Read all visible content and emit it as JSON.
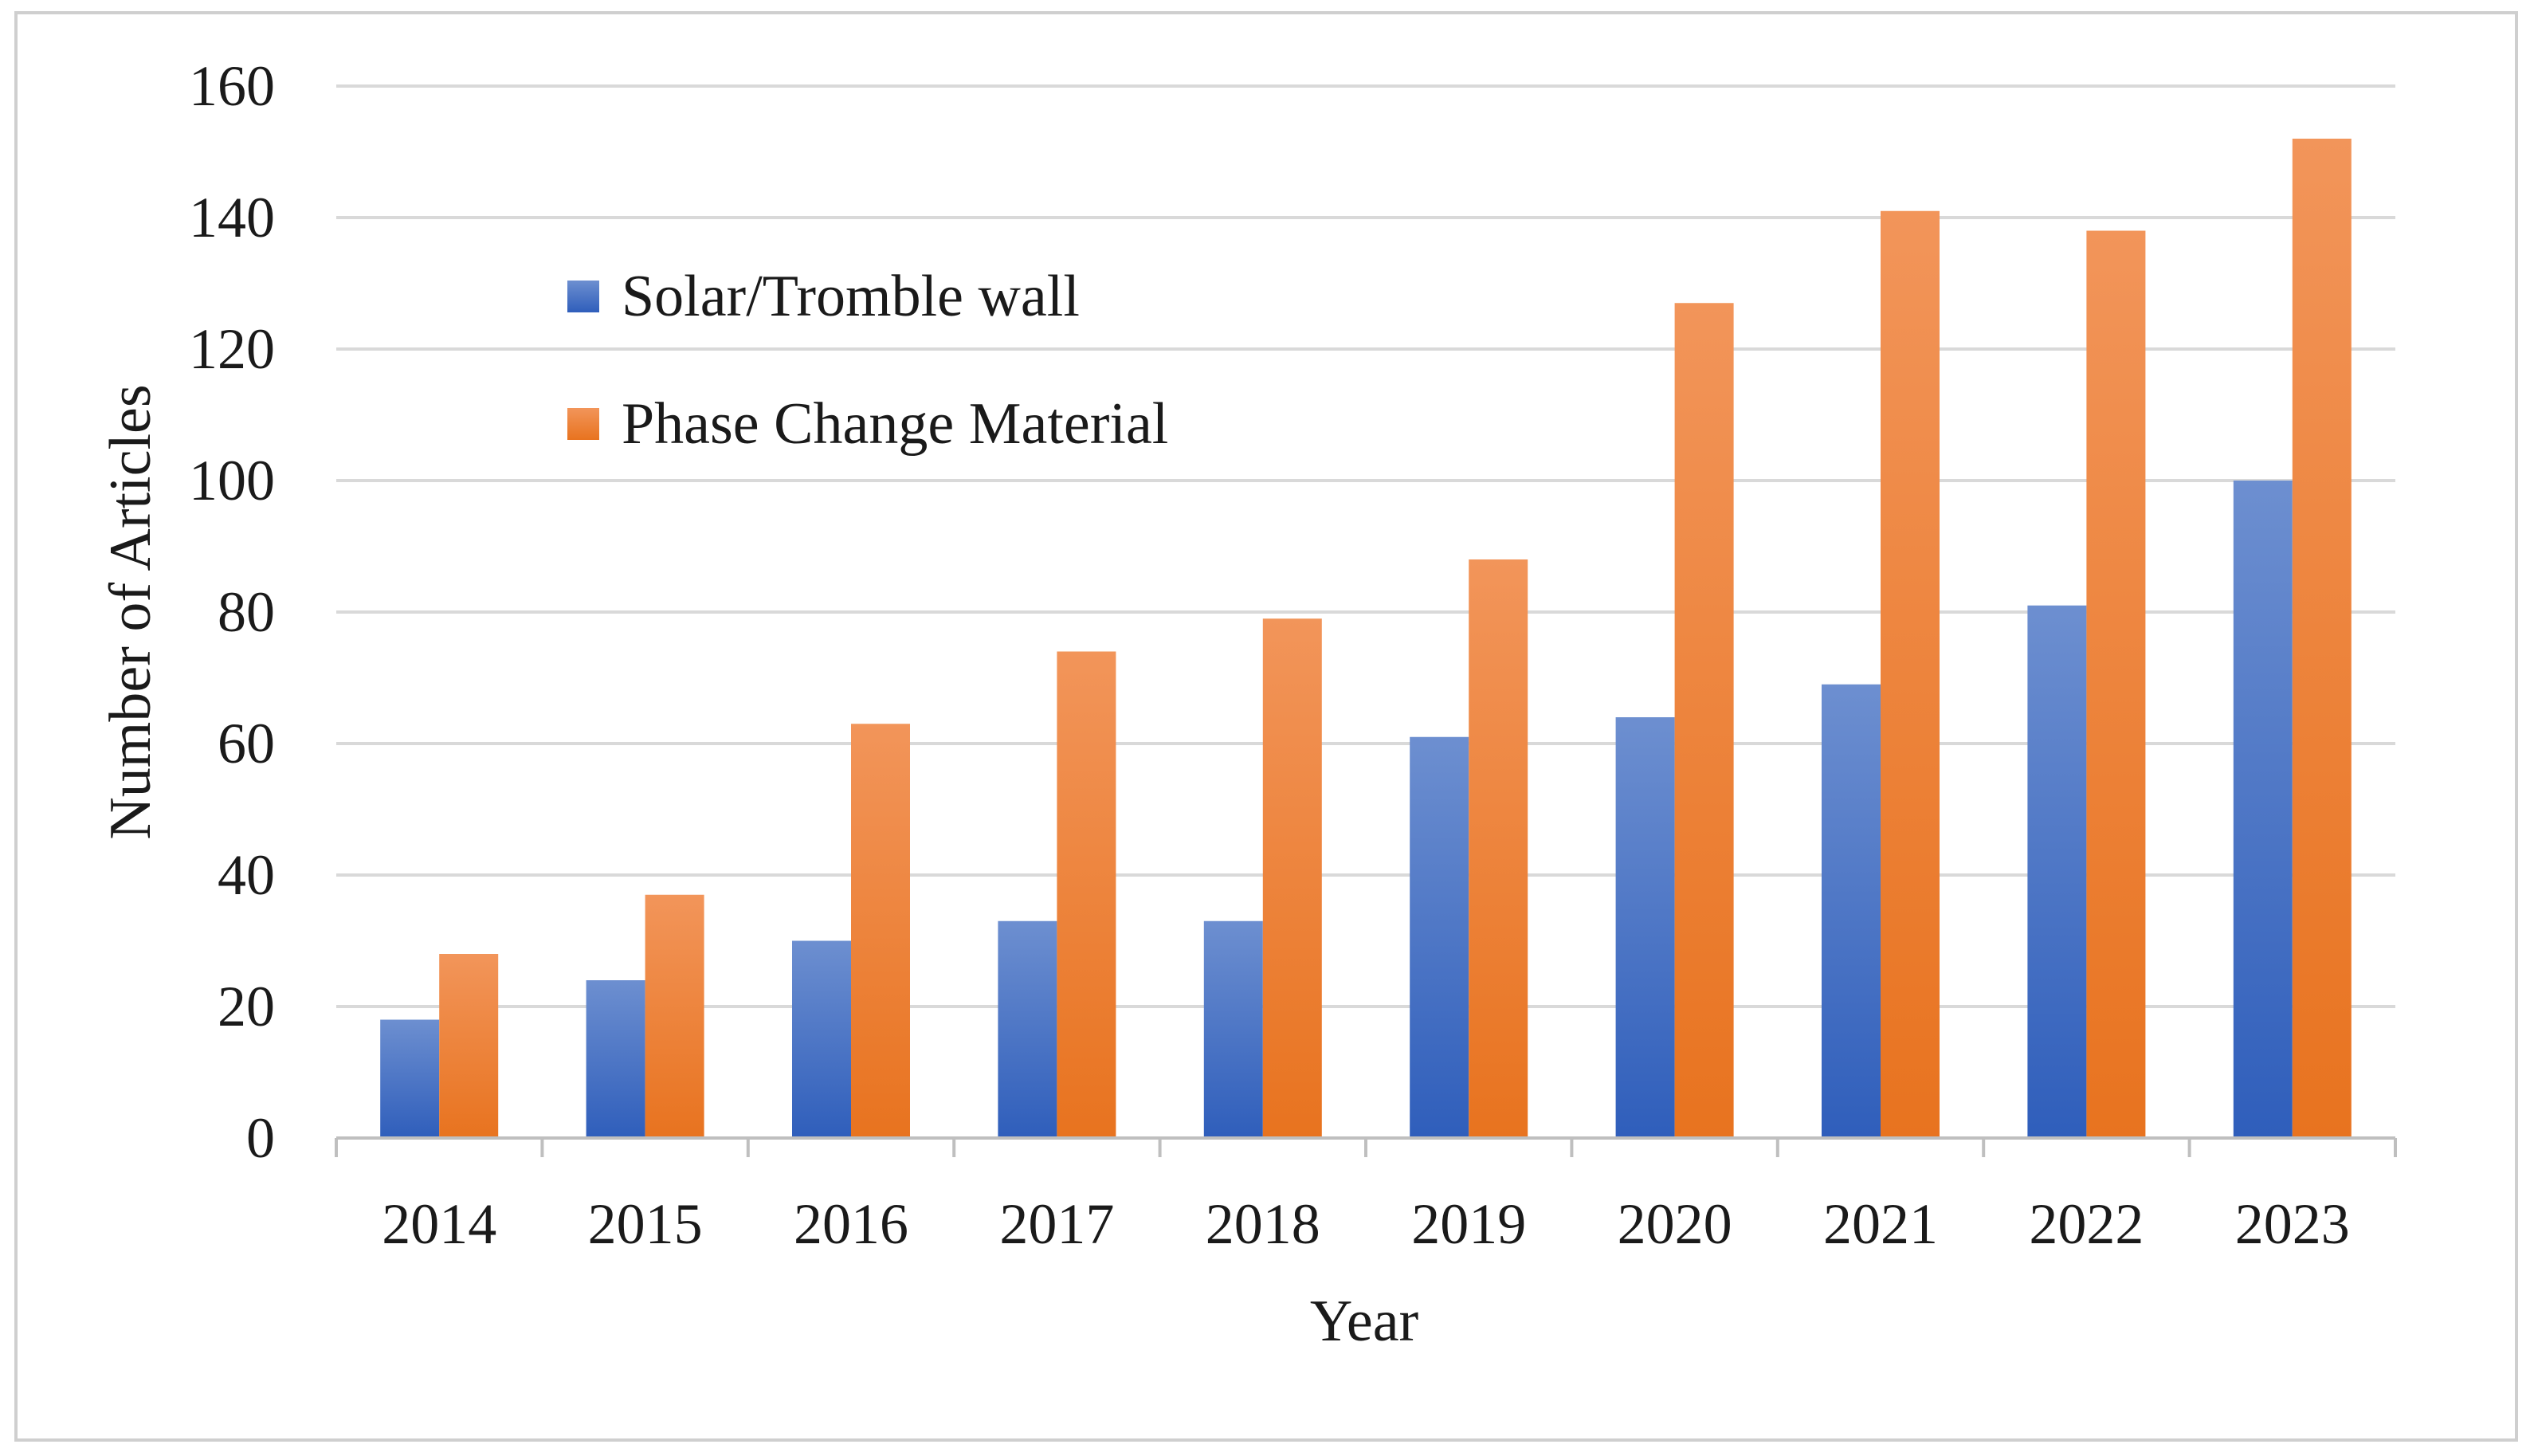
{
  "chart_data": {
    "type": "bar",
    "title": "",
    "xlabel": "Year",
    "ylabel": "Number of Articles",
    "categories": [
      "2014",
      "2015",
      "2016",
      "2017",
      "2018",
      "2019",
      "2020",
      "2021",
      "2022",
      "2023"
    ],
    "series": [
      {
        "name": "Solar/Tromble wall",
        "color": "#4472C4",
        "values": [
          18,
          24,
          30,
          33,
          33,
          61,
          64,
          69,
          81,
          100
        ]
      },
      {
        "name": "Phase Change Material",
        "color": "#ED7D31",
        "values": [
          28,
          37,
          63,
          74,
          79,
          88,
          127,
          141,
          138,
          152
        ]
      }
    ],
    "ylim": [
      0,
      160
    ],
    "yticks": [
      "0",
      "20",
      "40",
      "60",
      "80",
      "100",
      "120",
      "140",
      "160"
    ],
    "grid": true,
    "legend_position": "top-left"
  }
}
